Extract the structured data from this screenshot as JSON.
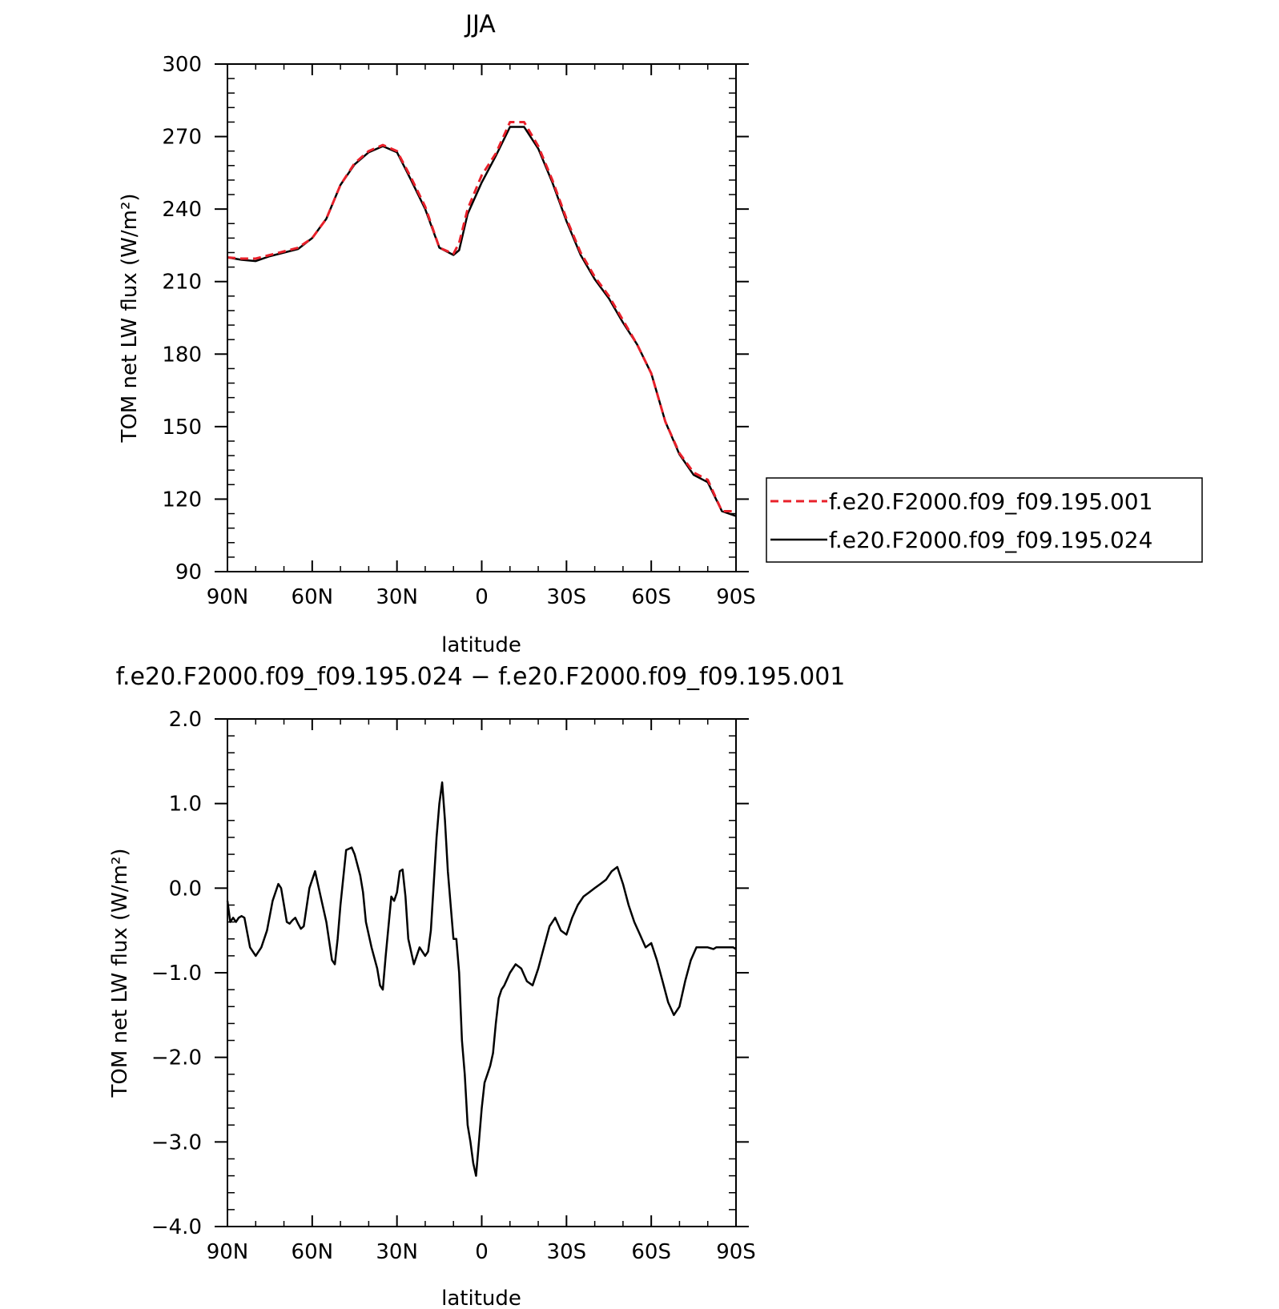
{
  "chart_data": [
    {
      "type": "line",
      "title": "JJA",
      "xlabel": "latitude",
      "ylabel": "TOM net LW flux (W/m²)",
      "ylim": [
        90,
        300
      ],
      "xlim": [
        90,
        -90
      ],
      "x_ticks": [
        90,
        60,
        30,
        0,
        -30,
        -60,
        -90
      ],
      "x_tick_labels": [
        "90N",
        "60N",
        "30N",
        "0",
        "30S",
        "60S",
        "90S"
      ],
      "y_ticks": [
        90,
        120,
        150,
        180,
        210,
        240,
        270,
        300
      ],
      "y_tick_labels": [
        "90",
        "120",
        "150",
        "180",
        "210",
        "240",
        "270",
        "300"
      ],
      "grid": false,
      "legend": "right",
      "x": [
        90,
        85,
        80,
        75,
        70,
        65,
        60,
        55,
        50,
        45,
        40,
        35,
        30,
        25,
        20,
        15,
        10,
        8,
        5,
        0,
        -5,
        -10,
        -15,
        -20,
        -25,
        -30,
        -35,
        -40,
        -45,
        -50,
        -55,
        -60,
        -65,
        -70,
        -75,
        -80,
        -85,
        -90
      ],
      "series": [
        {
          "name": "f.e20.F2000.f09_f09.195.001",
          "color": "#e8202a",
          "dash": "dashed",
          "values": [
            220,
            219.5,
            219.5,
            221,
            222.5,
            224,
            228,
            236,
            250,
            259,
            264,
            266.5,
            264,
            253,
            241,
            224,
            221.5,
            226,
            240,
            254,
            263,
            276,
            276,
            266,
            252,
            236,
            222,
            212,
            204,
            194,
            184,
            172,
            152,
            139,
            131,
            128,
            115,
            115
          ]
        },
        {
          "name": "f.e20.F2000.f09_f09.195.024",
          "color": "#000000",
          "dash": "solid",
          "values": [
            220,
            219,
            218.5,
            220.5,
            222,
            223.5,
            228,
            236,
            250,
            258.5,
            263.5,
            266,
            263.5,
            252,
            240,
            224,
            221,
            223,
            238,
            251,
            262,
            274,
            274,
            265,
            251,
            235,
            221,
            211,
            203,
            193,
            184,
            172,
            152,
            138.5,
            130,
            127,
            115,
            113
          ]
        }
      ]
    },
    {
      "type": "line",
      "title": "f.e20.F2000.f09_f09.195.024 − f.e20.F2000.f09_f09.195.001",
      "xlabel": "latitude",
      "ylabel": "TOM net LW flux (W/m²)",
      "ylim": [
        -4.0,
        2.0
      ],
      "xlim": [
        90,
        -90
      ],
      "x_ticks": [
        90,
        60,
        30,
        0,
        -30,
        -60,
        -90
      ],
      "x_tick_labels": [
        "90N",
        "60N",
        "30N",
        "0",
        "30S",
        "60S",
        "90S"
      ],
      "y_ticks": [
        -4.0,
        -3.0,
        -2.0,
        -1.0,
        0.0,
        1.0,
        2.0
      ],
      "y_tick_labels": [
        "−4.0",
        "−3.0",
        "−2.0",
        "−1.0",
        "0.0",
        "1.0",
        "2.0"
      ],
      "grid": false,
      "x": [
        90,
        89,
        88,
        87,
        86,
        85,
        84,
        82,
        80,
        78,
        76,
        74,
        72,
        71,
        70,
        69,
        68,
        67,
        66,
        65,
        64,
        63,
        61,
        59,
        57,
        55,
        53,
        52,
        51,
        50,
        48,
        46,
        45,
        43,
        42,
        41,
        39,
        37,
        36,
        35,
        34,
        32,
        31,
        30,
        29,
        28,
        27,
        26,
        25,
        24,
        22,
        20,
        19,
        18,
        16,
        15,
        14,
        13,
        12,
        11,
        10,
        9,
        8,
        7,
        6,
        5,
        4,
        3,
        2,
        1,
        0,
        -1,
        -2,
        -3,
        -4,
        -5,
        -6,
        -7,
        -8,
        -10,
        -12,
        -14,
        -16,
        -18,
        -20,
        -22,
        -24,
        -26,
        -28,
        -30,
        -32,
        -34,
        -36,
        -38,
        -40,
        -42,
        -44,
        -46,
        -48,
        -50,
        -52,
        -54,
        -56,
        -58,
        -60,
        -62,
        -64,
        -66,
        -68,
        -70,
        -72,
        -74,
        -76,
        -78,
        -80,
        -82,
        -83,
        -84,
        -86,
        -88,
        -89,
        -90
      ],
      "series": [
        {
          "name": "",
          "color": "#000000",
          "dash": "solid",
          "values": [
            -0.15,
            -0.4,
            -0.35,
            -0.4,
            -0.35,
            -0.33,
            -0.35,
            -0.7,
            -0.8,
            -0.7,
            -0.5,
            -0.15,
            0.05,
            0.0,
            -0.2,
            -0.4,
            -0.42,
            -0.38,
            -0.35,
            -0.42,
            -0.48,
            -0.45,
            0.0,
            0.2,
            -0.1,
            -0.4,
            -0.85,
            -0.9,
            -0.6,
            -0.2,
            0.45,
            0.48,
            0.4,
            0.15,
            -0.05,
            -0.4,
            -0.7,
            -0.95,
            -1.15,
            -1.2,
            -0.8,
            -0.1,
            -0.15,
            -0.05,
            0.2,
            0.22,
            -0.1,
            -0.6,
            -0.75,
            -0.9,
            -0.7,
            -0.8,
            -0.75,
            -0.5,
            0.6,
            1.0,
            1.25,
            0.8,
            0.2,
            -0.2,
            -0.6,
            -0.6,
            -1.0,
            -1.8,
            -2.2,
            -2.8,
            -3.0,
            -3.25,
            -3.4,
            -3.0,
            -2.6,
            -2.3,
            -2.2,
            -2.1,
            -1.95,
            -1.6,
            -1.3,
            -1.2,
            -1.15,
            -1.0,
            -0.9,
            -0.95,
            -1.1,
            -1.15,
            -0.95,
            -0.7,
            -0.45,
            -0.35,
            -0.5,
            -0.55,
            -0.35,
            -0.2,
            -0.1,
            -0.05,
            0.0,
            0.05,
            0.1,
            0.2,
            0.25,
            0.05,
            -0.2,
            -0.4,
            -0.55,
            -0.7,
            -0.65,
            -0.85,
            -1.1,
            -1.35,
            -1.5,
            -1.4,
            -1.1,
            -0.85,
            -0.7,
            -0.7,
            -0.7,
            -0.72,
            -0.7,
            -0.7,
            -0.7,
            -0.7,
            -0.7,
            -0.72
          ]
        }
      ]
    }
  ]
}
